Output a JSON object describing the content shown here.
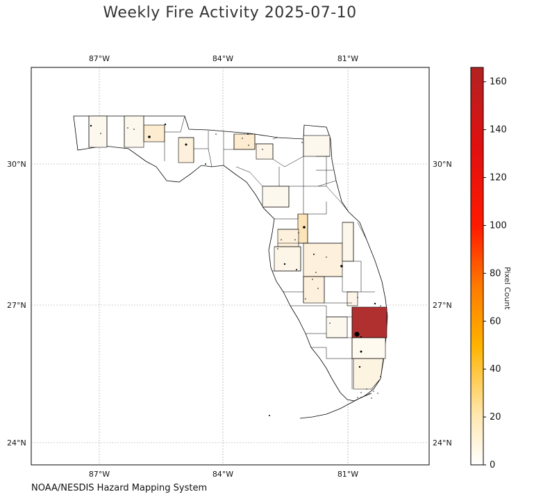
{
  "title": "Weekly Fire Activity 2025-07-10",
  "credit": "NOAA/NESDIS Hazard Mapping System",
  "map": {
    "lon_ticks": [
      "87°W",
      "84°W",
      "81°W"
    ],
    "lat_ticks": [
      "30°N",
      "27°N",
      "24°N"
    ],
    "gridlines": true
  },
  "colorbar": {
    "label": "Pixel Count",
    "ticks": [
      "0",
      "20",
      "40",
      "60",
      "80",
      "100",
      "120",
      "140",
      "160"
    ],
    "range": [
      0,
      166
    ],
    "colormap": [
      "#ffffff",
      "#ffe9b3",
      "#ffb300",
      "#ff6a00",
      "#ff0000",
      "#b22222"
    ]
  },
  "chart_data": {
    "type": "map",
    "region": "Florida counties",
    "value_name": "Pixel Count",
    "colorbar_range": [
      0,
      166
    ],
    "lon_range": [
      -88.6,
      -79.0
    ],
    "lat_range": [
      23.5,
      31.9
    ],
    "notable": [
      {
        "area": "Palm Beach area (east coast, ~26.8°N)",
        "value": 166
      },
      {
        "area": "Hernando/Pasco area (west central, ~28.7°N)",
        "value": 18
      }
    ]
  }
}
